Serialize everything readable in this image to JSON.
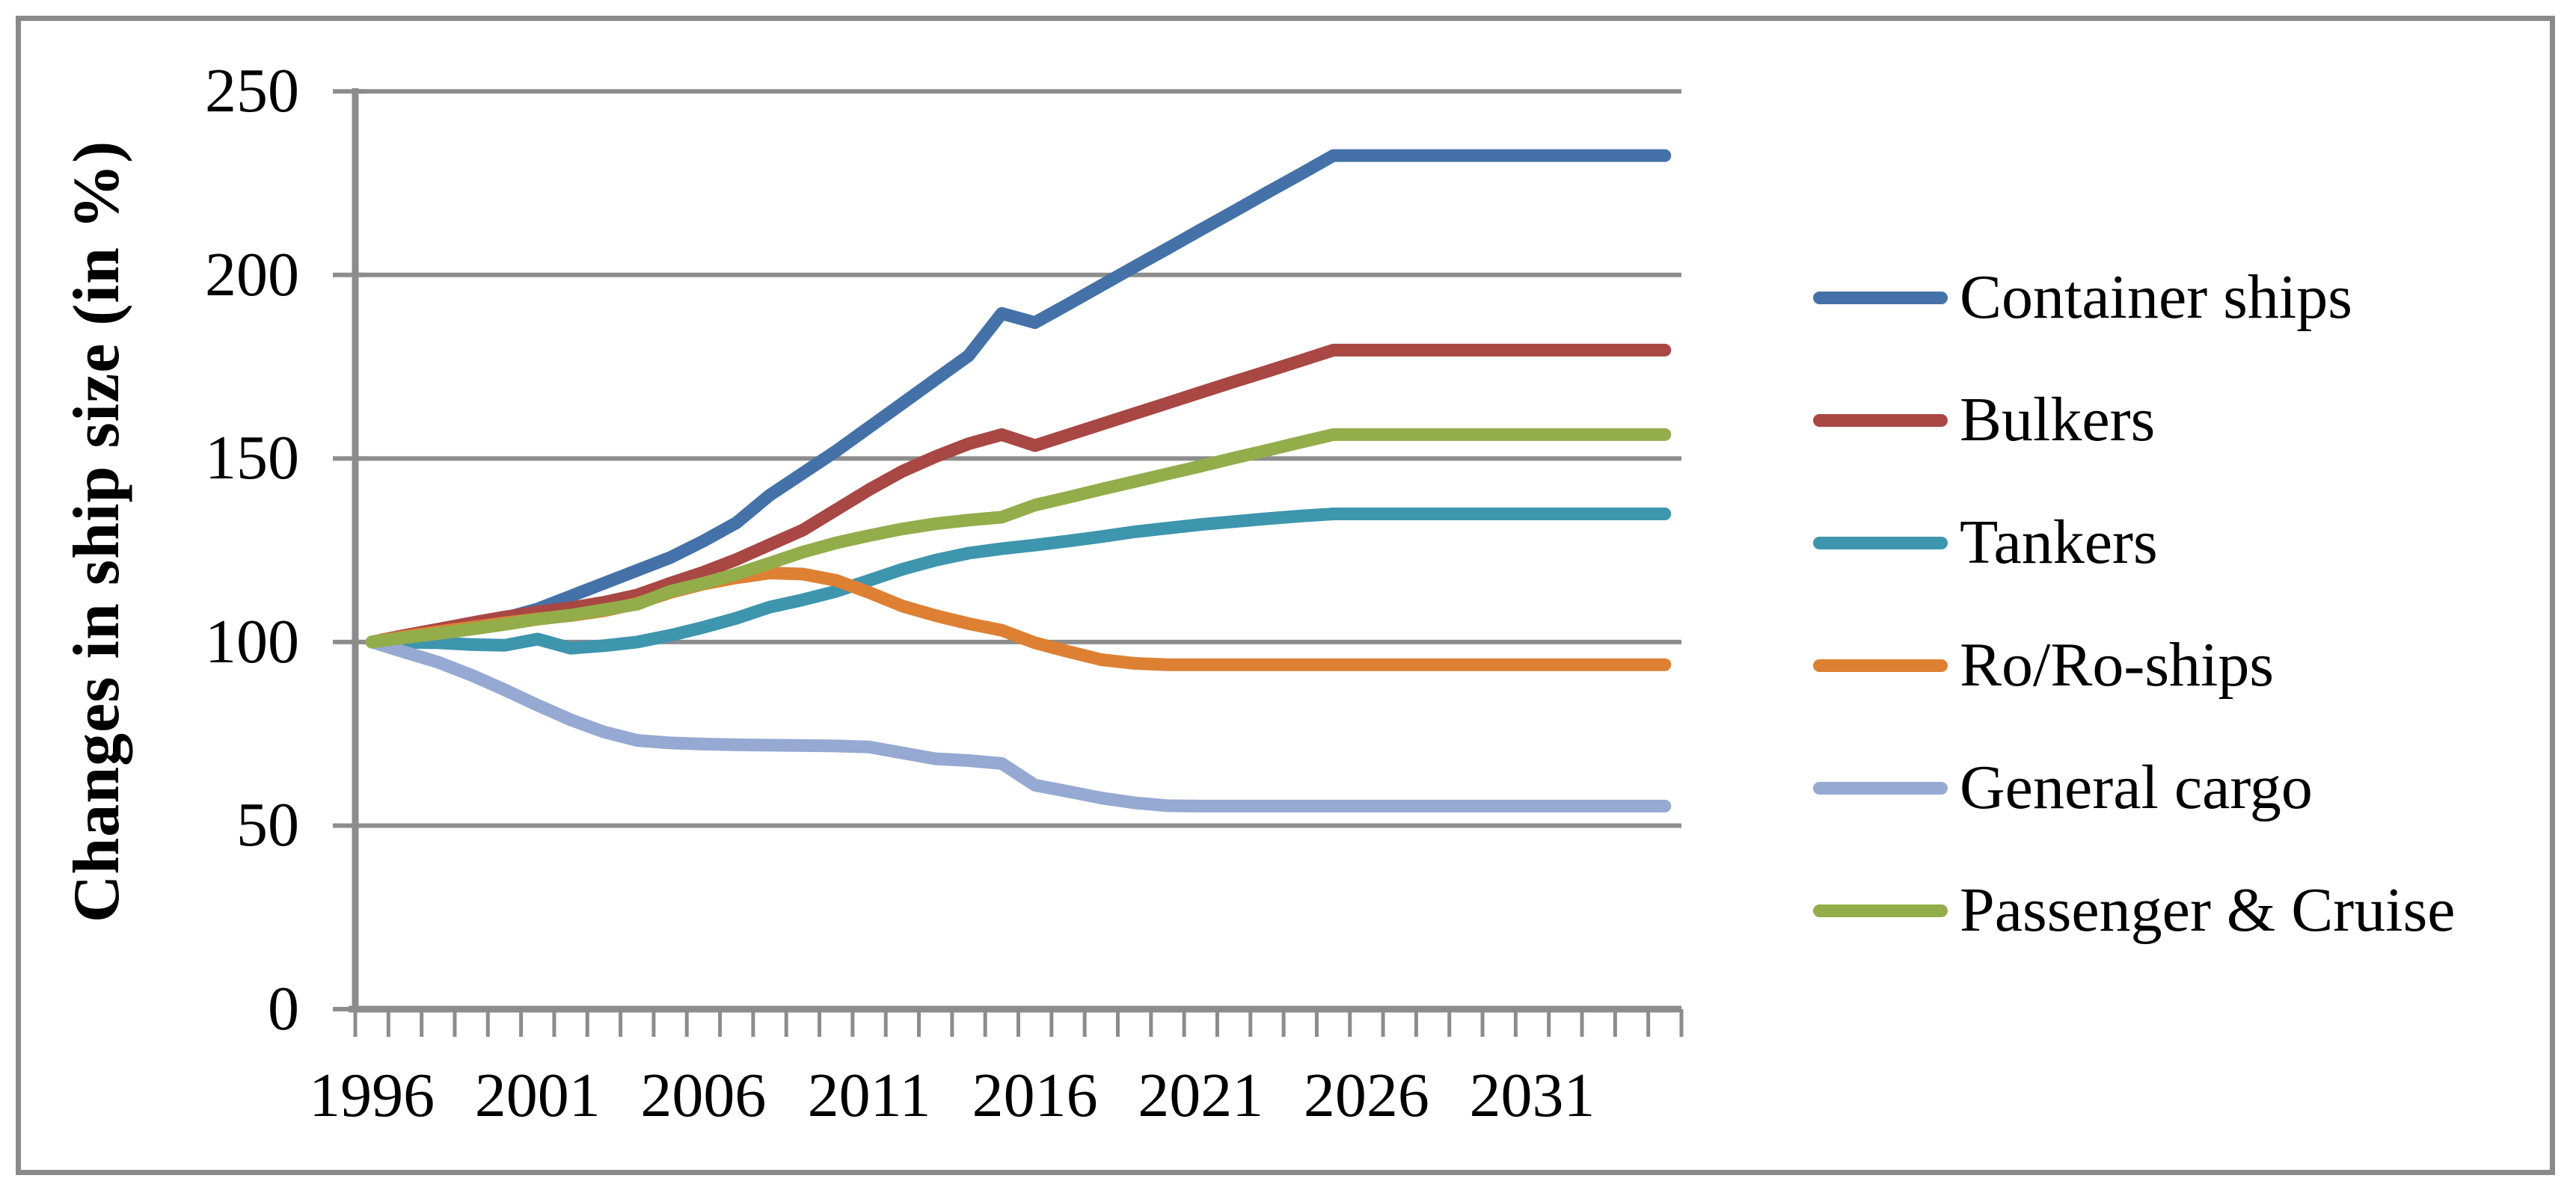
{
  "figure": {
    "border_color": "#8A8A8A",
    "background_color": "#FFFFFF",
    "grid_color": "#8C8C8C",
    "axis_color": "#8C8C8C"
  },
  "chart_data": {
    "type": "line",
    "title": "",
    "xlabel": "",
    "ylabel": "Changes in ship size (in %)",
    "ylim": [
      0,
      250
    ],
    "y_ticks": [
      0,
      50,
      100,
      150,
      200,
      250
    ],
    "x_tick_labels": [
      "1996",
      "2001",
      "2006",
      "2011",
      "2016",
      "2021",
      "2026",
      "2031"
    ],
    "grid": "horizontal",
    "legend_position": "right",
    "x": [
      1996,
      1997,
      1998,
      1999,
      2000,
      2001,
      2002,
      2003,
      2004,
      2005,
      2006,
      2007,
      2008,
      2009,
      2010,
      2011,
      2012,
      2013,
      2014,
      2015,
      2016,
      2017,
      2018,
      2019,
      2020,
      2021,
      2022,
      2023,
      2024,
      2025,
      2026,
      2027,
      2028,
      2029,
      2030,
      2031,
      2032,
      2033,
      2034,
      2035
    ],
    "series": [
      {
        "name": "Container ships",
        "color": "#4472A8",
        "values": [
          100,
          101.5,
          103,
          104.5,
          106.5,
          109,
          112.5,
          116,
          119.5,
          123,
          127.5,
          132.5,
          140,
          146,
          152,
          158.5,
          165,
          171.5,
          178,
          189.5,
          187,
          192,
          197.1,
          202.2,
          207.2,
          212.3,
          217.3,
          222.4,
          227.4,
          232.5,
          232.5,
          232.5,
          232.5,
          232.5,
          232.5,
          232.5,
          232.5,
          232.5,
          232.5,
          232.5
        ]
      },
      {
        "name": "Bulkers",
        "color": "#A84743",
        "values": [
          100,
          101.8,
          103.5,
          105.2,
          106.8,
          108.2,
          109.3,
          110.8,
          112.8,
          116,
          119,
          122.5,
          126.5,
          130.5,
          136,
          141.5,
          146.5,
          150.5,
          154,
          156.5,
          153.5,
          156.4,
          159.3,
          162.2,
          165.1,
          168,
          170.9,
          173.7,
          176.6,
          179.5,
          179.5,
          179.5,
          179.5,
          179.5,
          179.5,
          179.5,
          179.5,
          179.5,
          179.5,
          179.5
        ]
      },
      {
        "name": "Tankers",
        "color": "#3E95AE",
        "values": [
          100,
          99.9,
          99.8,
          99.3,
          99.1,
          100.8,
          98.3,
          99,
          100,
          101.8,
          104,
          106.5,
          109.5,
          111.5,
          113.8,
          116.8,
          119.8,
          122.3,
          124.2,
          125.4,
          126.4,
          127.5,
          128.7,
          130,
          131,
          132,
          132.8,
          133.6,
          134.3,
          134.9,
          134.9,
          134.9,
          134.9,
          134.9,
          134.9,
          134.9,
          134.9,
          134.9,
          134.9,
          134.9
        ]
      },
      {
        "name": "Ro/Ro-ships",
        "color": "#DE8033",
        "values": [
          100,
          101.5,
          102.8,
          104,
          105.2,
          106.3,
          107.2,
          108.5,
          110.5,
          113.5,
          115.8,
          117.5,
          118.8,
          118.5,
          116.8,
          113.5,
          109.8,
          107.2,
          105,
          103.2,
          99.8,
          97.4,
          95.2,
          94.2,
          93.8,
          93.8,
          93.8,
          93.8,
          93.8,
          93.8,
          93.8,
          93.8,
          93.8,
          93.8,
          93.8,
          93.8,
          93.8,
          93.8,
          93.8,
          93.8
        ]
      },
      {
        "name": "General cargo",
        "color": "#95A9D3",
        "values": [
          100,
          97.2,
          94.5,
          91,
          87,
          82.8,
          78.8,
          75.5,
          73.2,
          72.5,
          72.2,
          72,
          71.9,
          71.8,
          71.7,
          71.4,
          69.8,
          68.2,
          67.7,
          66.9,
          61,
          59.3,
          57.5,
          56.2,
          55.4,
          55.3,
          55.3,
          55.3,
          55.3,
          55.3,
          55.3,
          55.3,
          55.3,
          55.3,
          55.3,
          55.3,
          55.3,
          55.3,
          55.3,
          55.3
        ]
      },
      {
        "name": "Passenger & Cruise",
        "color": "#93AD4A",
        "values": [
          100,
          101.2,
          102.3,
          103.5,
          104.8,
          106.2,
          107.3,
          108.8,
          110.3,
          113.8,
          116,
          118.5,
          121.5,
          124.5,
          127,
          129,
          130.8,
          132.2,
          133.2,
          134,
          137.3,
          139.4,
          141.6,
          143.7,
          145.8,
          147.9,
          150.1,
          152.2,
          154.4,
          156.5,
          156.5,
          156.5,
          156.5,
          156.5,
          156.5,
          156.5,
          156.5,
          156.5,
          156.5,
          156.5
        ]
      }
    ]
  }
}
